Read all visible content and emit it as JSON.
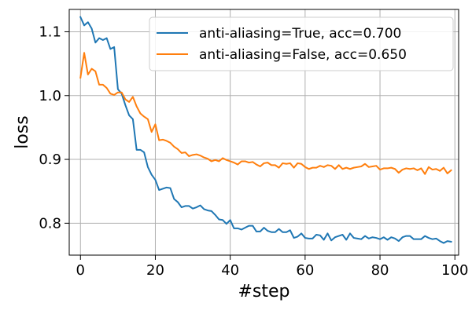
{
  "chart_data": {
    "type": "line",
    "title": "",
    "xlabel": "#step",
    "ylabel": "loss",
    "xlim": [
      -3,
      101
    ],
    "ylim": [
      0.75,
      1.135
    ],
    "xticks": [
      0,
      20,
      40,
      60,
      80,
      100
    ],
    "yticks": [
      0.8,
      0.9,
      1.0,
      1.1
    ],
    "xtick_labels": [
      "0",
      "20",
      "40",
      "60",
      "80",
      "100"
    ],
    "ytick_labels": [
      "0.8",
      "0.9",
      "1.0",
      "1.1"
    ],
    "grid": true,
    "legend_position": "top-right",
    "series": [
      {
        "name": "anti-aliasing=True, acc=0.700",
        "color": "#1f77b4",
        "x": [
          0,
          1,
          2,
          3,
          4,
          5,
          6,
          7,
          8,
          9,
          10,
          11,
          12,
          13,
          14,
          15,
          16,
          17,
          18,
          19,
          20,
          21,
          22,
          23,
          24,
          25,
          26,
          27,
          28,
          29,
          30,
          31,
          32,
          33,
          34,
          35,
          36,
          37,
          38,
          39,
          40,
          41,
          42,
          43,
          44,
          45,
          46,
          47,
          48,
          49,
          50,
          51,
          52,
          53,
          54,
          55,
          56,
          57,
          58,
          59,
          60,
          61,
          62,
          63,
          64,
          65,
          66,
          67,
          68,
          69,
          70,
          71,
          72,
          73,
          74,
          75,
          76,
          77,
          78,
          79,
          80,
          81,
          82,
          83,
          84,
          85,
          86,
          87,
          88,
          89,
          90,
          91,
          92,
          93,
          94,
          95,
          96,
          97,
          98,
          99
        ],
        "y": [
          1.123,
          1.11,
          1.115,
          1.105,
          1.083,
          1.09,
          1.087,
          1.09,
          1.073,
          1.076,
          1.01,
          1.003,
          0.985,
          0.969,
          0.963,
          0.915,
          0.915,
          0.911,
          0.888,
          0.876,
          0.868,
          0.852,
          0.854,
          0.856,
          0.855,
          0.838,
          0.833,
          0.825,
          0.827,
          0.827,
          0.823,
          0.825,
          0.828,
          0.822,
          0.82,
          0.819,
          0.813,
          0.806,
          0.805,
          0.799,
          0.805,
          0.792,
          0.792,
          0.79,
          0.793,
          0.796,
          0.796,
          0.787,
          0.787,
          0.793,
          0.788,
          0.786,
          0.786,
          0.791,
          0.786,
          0.786,
          0.789,
          0.777,
          0.779,
          0.784,
          0.777,
          0.776,
          0.776,
          0.782,
          0.781,
          0.774,
          0.784,
          0.773,
          0.778,
          0.78,
          0.782,
          0.774,
          0.784,
          0.777,
          0.776,
          0.775,
          0.78,
          0.776,
          0.778,
          0.777,
          0.775,
          0.778,
          0.774,
          0.778,
          0.776,
          0.772,
          0.778,
          0.78,
          0.78,
          0.775,
          0.775,
          0.775,
          0.78,
          0.777,
          0.775,
          0.776,
          0.772,
          0.769,
          0.772,
          0.771
        ]
      },
      {
        "name": "anti-aliasing=False, acc=0.650",
        "color": "#ff7f0e",
        "x": [
          0,
          1,
          2,
          3,
          4,
          5,
          6,
          7,
          8,
          9,
          10,
          11,
          12,
          13,
          14,
          15,
          16,
          17,
          18,
          19,
          20,
          21,
          22,
          23,
          24,
          25,
          26,
          27,
          28,
          29,
          30,
          31,
          32,
          33,
          34,
          35,
          36,
          37,
          38,
          39,
          40,
          41,
          42,
          43,
          44,
          45,
          46,
          47,
          48,
          49,
          50,
          51,
          52,
          53,
          54,
          55,
          56,
          57,
          58,
          59,
          60,
          61,
          62,
          63,
          64,
          65,
          66,
          67,
          68,
          69,
          70,
          71,
          72,
          73,
          74,
          75,
          76,
          77,
          78,
          79,
          80,
          81,
          82,
          83,
          84,
          85,
          86,
          87,
          88,
          89,
          90,
          91,
          92,
          93,
          94,
          95,
          96,
          97,
          98,
          99
        ],
        "y": [
          1.028,
          1.067,
          1.033,
          1.042,
          1.038,
          1.017,
          1.017,
          1.012,
          1.003,
          1.001,
          1.005,
          1.005,
          0.994,
          0.99,
          0.998,
          0.983,
          0.972,
          0.967,
          0.963,
          0.943,
          0.955,
          0.93,
          0.931,
          0.929,
          0.926,
          0.92,
          0.916,
          0.91,
          0.911,
          0.905,
          0.907,
          0.908,
          0.906,
          0.903,
          0.901,
          0.897,
          0.899,
          0.897,
          0.902,
          0.899,
          0.897,
          0.895,
          0.892,
          0.897,
          0.897,
          0.895,
          0.896,
          0.892,
          0.889,
          0.894,
          0.895,
          0.891,
          0.891,
          0.887,
          0.894,
          0.893,
          0.894,
          0.887,
          0.894,
          0.893,
          0.888,
          0.885,
          0.887,
          0.887,
          0.89,
          0.888,
          0.891,
          0.89,
          0.885,
          0.891,
          0.885,
          0.887,
          0.885,
          0.887,
          0.888,
          0.889,
          0.893,
          0.888,
          0.889,
          0.89,
          0.884,
          0.886,
          0.886,
          0.887,
          0.885,
          0.879,
          0.884,
          0.886,
          0.885,
          0.886,
          0.883,
          0.886,
          0.877,
          0.888,
          0.884,
          0.885,
          0.882,
          0.887,
          0.878,
          0.883
        ]
      }
    ]
  }
}
